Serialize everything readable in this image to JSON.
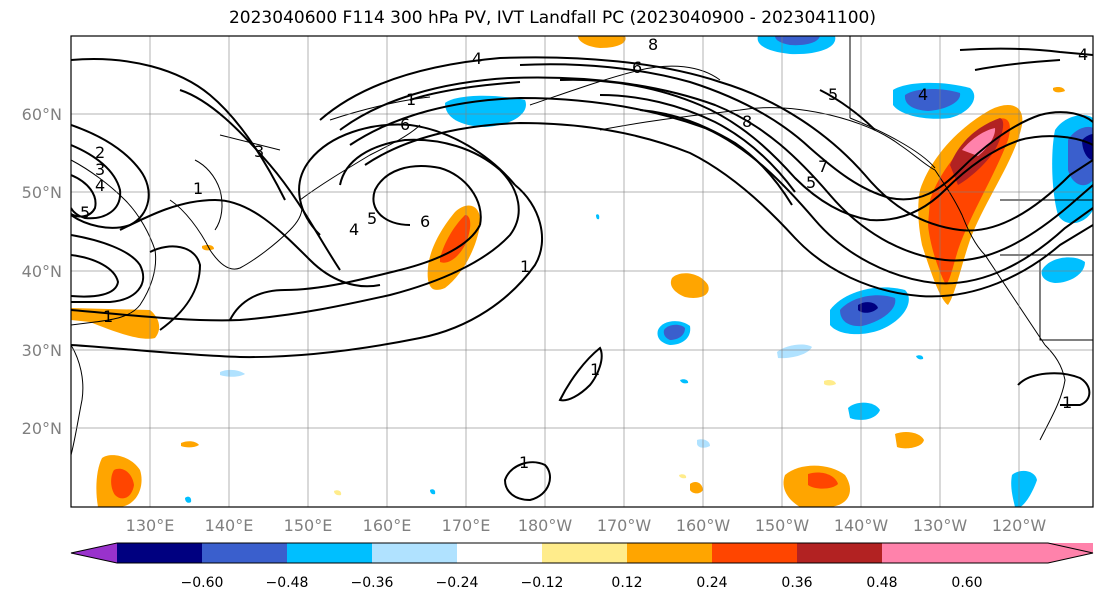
{
  "title": "2023040600 F114 300 hPa PV, IVT Landfall PC (2023040900 - 2023041100)",
  "map": {
    "lat_labels": [
      "60°N",
      "50°N",
      "40°N",
      "30°N",
      "20°N"
    ],
    "lon_labels": [
      "130°E",
      "140°E",
      "150°E",
      "160°E",
      "170°E",
      "180°W",
      "170°W",
      "160°W",
      "150°W",
      "140°W",
      "130°W",
      "120°W"
    ]
  },
  "contour_labels": [
    "4",
    "4",
    "6",
    "8",
    "4",
    "5",
    "7",
    "5",
    "8",
    "2",
    "3",
    "4",
    "5",
    "1",
    "3",
    "4",
    "5",
    "6",
    "1",
    "1",
    "1",
    "1",
    "1",
    "1",
    "6"
  ],
  "colorbar": {
    "ticks": [
      "−0.60",
      "−0.48",
      "−0.36",
      "−0.24",
      "−0.12",
      "0.12",
      "0.24",
      "0.36",
      "0.48",
      "0.60"
    ],
    "colors": [
      "#9932cc",
      "#000080",
      "#3a5fcd",
      "#00bfff",
      "#b0e2ff",
      "#ffffff",
      "#ffec8b",
      "#ffa500",
      "#ff4500",
      "#b22222",
      "#ff82ab",
      "#ff82ab"
    ]
  }
}
